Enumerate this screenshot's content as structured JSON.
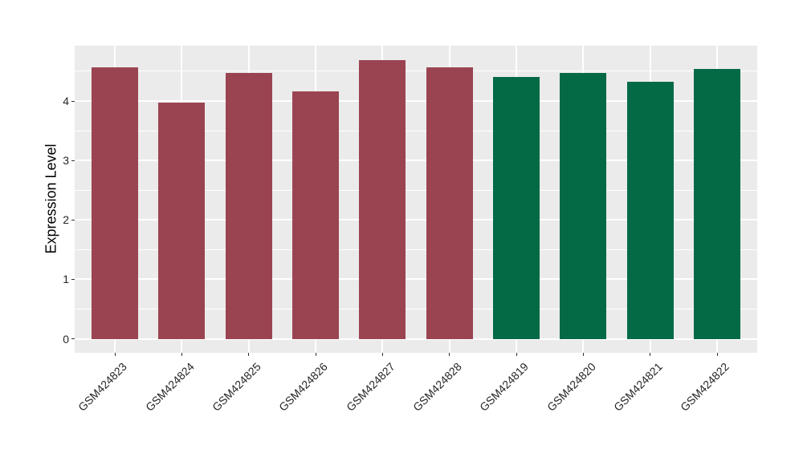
{
  "figure": {
    "background": "#FFFFFF"
  },
  "panel": {
    "background": "#EBEBEB",
    "grid_color": "#FFFFFF",
    "tick_color": "#333333",
    "axis_text_color": "#262626",
    "axis_title_color": "#000000"
  },
  "chart_data": {
    "type": "bar",
    "title": "",
    "xlabel": "",
    "ylabel": "Expression Level",
    "categories": [
      "GSM424823",
      "GSM424824",
      "GSM424825",
      "GSM424826",
      "GSM424827",
      "GSM424828",
      "GSM424819",
      "GSM424820",
      "GSM424821",
      "GSM424822"
    ],
    "values": [
      4.57,
      3.97,
      4.47,
      4.16,
      4.69,
      4.57,
      4.41,
      4.47,
      4.33,
      4.54
    ],
    "bar_colors": [
      "#9B4451",
      "#9B4451",
      "#9B4451",
      "#9B4451",
      "#9B4451",
      "#9B4451",
      "#046A46",
      "#046A46",
      "#046A46",
      "#046A46"
    ],
    "group_colors": {
      "maroon": "#9B4451",
      "green": "#046A46"
    },
    "yticks": [
      0,
      1,
      2,
      3,
      4
    ],
    "yticks_minor": [
      0.5,
      1.5,
      2.5,
      3.5,
      4.5
    ],
    "ylim": [
      -0.235,
      4.93
    ],
    "grid": "on",
    "legend": "none"
  }
}
